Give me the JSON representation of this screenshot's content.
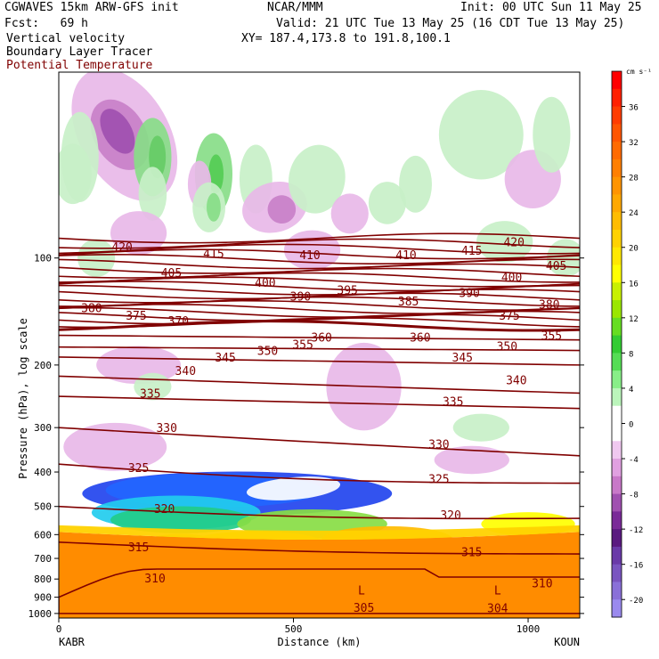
{
  "header": {
    "model": "CGWAVES 15km ARW-GFS init",
    "org": "NCAR/MMM",
    "init": "Init: 00 UTC Sun 11 May 25",
    "fcst": "Fcst:   69 h",
    "valid": "Valid: 21 UTC Tue 13 May 25 (16 CDT Tue 13 May 25)",
    "field1": "Vertical velocity",
    "field2": "Boundary Layer Tracer",
    "field3": "Potential Temperature",
    "xy": "XY= 187.4,173.8 to 191.8,100.1"
  },
  "colors": {
    "theta_contour": "#800000",
    "field3_text": "#800000"
  },
  "chart_data": {
    "type": "heatmap",
    "title": "",
    "xlabel": "Distance (km)",
    "ylabel": "Pressure (hPa), log scale",
    "x_range": [
      0,
      1110
    ],
    "x_ticks": [
      0,
      500,
      1000
    ],
    "y_ticks": [
      100,
      200,
      300,
      400,
      500,
      600,
      700,
      800,
      900,
      1000
    ],
    "y_scale": "log",
    "y_range": [
      1030,
      30
    ],
    "left_label": "KABR",
    "right_label": "KOUN",
    "colorbar": {
      "unit": "cm s⁻¹",
      "tick_labels": [
        36,
        32,
        28,
        24,
        20,
        16,
        12,
        8,
        4,
        0,
        -4,
        -8,
        -12,
        -16,
        -20
      ],
      "levels": [
        40,
        38,
        36,
        34,
        32,
        30,
        28,
        26,
        24,
        22,
        20,
        18,
        16,
        14,
        12,
        10,
        8,
        6,
        4,
        2,
        0,
        -2,
        -4,
        -6,
        -8,
        -10,
        -12,
        -14,
        -16,
        -18,
        -20,
        -22
      ],
      "colors": [
        "#ff0000",
        "#ff2000",
        "#ff3c00",
        "#ff5500",
        "#ff6a00",
        "#ff7f00",
        "#ff9400",
        "#ffa800",
        "#ffbc00",
        "#ffd200",
        "#ffe800",
        "#ffff00",
        "#c8f000",
        "#9ae600",
        "#66dd22",
        "#33cc33",
        "#55dd55",
        "#88ee88",
        "#bbf5bb",
        "#ffffff",
        "#ffffff",
        "#f0c8f0",
        "#e0a0e0",
        "#c878c8",
        "#a050b0",
        "#7a2a98",
        "#5a1a80",
        "#6a3aa8",
        "#7a55c0",
        "#8a70d8",
        "#9a8aee"
      ]
    },
    "theta_labels": [
      {
        "text": "420",
        "x": 135,
        "p": 93
      },
      {
        "text": "415",
        "x": 330,
        "p": 97
      },
      {
        "text": "410",
        "x": 535,
        "p": 98
      },
      {
        "text": "410",
        "x": 740,
        "p": 98
      },
      {
        "text": "415",
        "x": 880,
        "p": 95
      },
      {
        "text": "420",
        "x": 970,
        "p": 90
      },
      {
        "text": "405",
        "x": 240,
        "p": 110
      },
      {
        "text": "400",
        "x": 440,
        "p": 117
      },
      {
        "text": "390",
        "x": 515,
        "p": 128
      },
      {
        "text": "395",
        "x": 615,
        "p": 123
      },
      {
        "text": "385",
        "x": 745,
        "p": 132
      },
      {
        "text": "390",
        "x": 875,
        "p": 125
      },
      {
        "text": "400",
        "x": 965,
        "p": 113
      },
      {
        "text": "405",
        "x": 1060,
        "p": 105
      },
      {
        "text": "380",
        "x": 70,
        "p": 138
      },
      {
        "text": "375",
        "x": 165,
        "p": 145
      },
      {
        "text": "370",
        "x": 255,
        "p": 150
      },
      {
        "text": "380",
        "x": 1045,
        "p": 135
      },
      {
        "text": "375",
        "x": 960,
        "p": 145
      },
      {
        "text": "355",
        "x": 1050,
        "p": 165
      },
      {
        "text": "360",
        "x": 560,
        "p": 167
      },
      {
        "text": "360",
        "x": 770,
        "p": 167
      },
      {
        "text": "355",
        "x": 520,
        "p": 175
      },
      {
        "text": "350",
        "x": 445,
        "p": 182
      },
      {
        "text": "350",
        "x": 955,
        "p": 177
      },
      {
        "text": "345",
        "x": 355,
        "p": 190
      },
      {
        "text": "345",
        "x": 860,
        "p": 190
      },
      {
        "text": "340",
        "x": 270,
        "p": 207
      },
      {
        "text": "340",
        "x": 975,
        "p": 220
      },
      {
        "text": "335",
        "x": 195,
        "p": 240
      },
      {
        "text": "335",
        "x": 840,
        "p": 253
      },
      {
        "text": "330",
        "x": 230,
        "p": 300
      },
      {
        "text": "330",
        "x": 810,
        "p": 333
      },
      {
        "text": "325",
        "x": 170,
        "p": 388
      },
      {
        "text": "325",
        "x": 810,
        "p": 418
      },
      {
        "text": "320",
        "x": 225,
        "p": 506
      },
      {
        "text": "320",
        "x": 835,
        "p": 528
      },
      {
        "text": "315",
        "x": 170,
        "p": 650
      },
      {
        "text": "315",
        "x": 880,
        "p": 670
      },
      {
        "text": "310",
        "x": 205,
        "p": 795
      },
      {
        "text": "310",
        "x": 1030,
        "p": 820
      },
      {
        "text": "305",
        "x": 650,
        "p": 960
      },
      {
        "text": "304",
        "x": 935,
        "p": 965
      },
      {
        "text": "L",
        "x": 645,
        "p": 860
      },
      {
        "text": "L",
        "x": 935,
        "p": 860
      }
    ]
  }
}
